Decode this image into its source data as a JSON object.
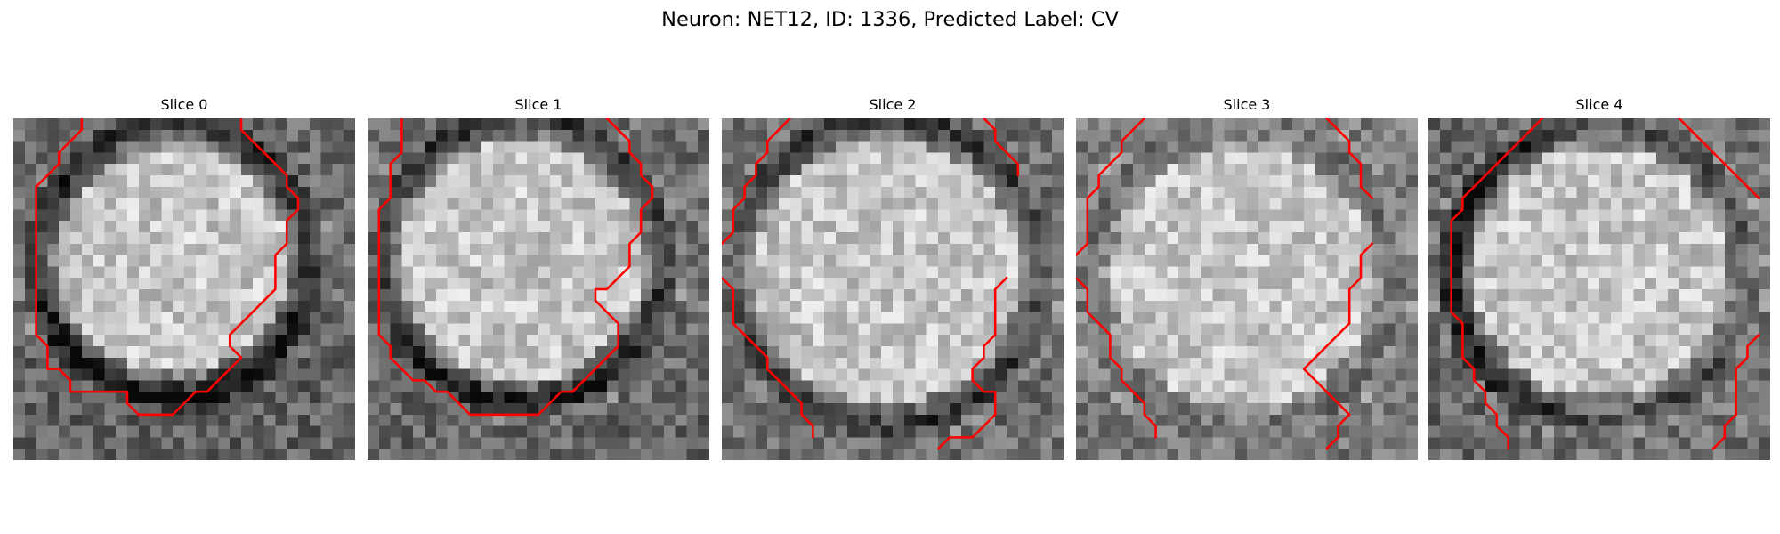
{
  "figure": {
    "title": "Neuron: NET12, ID: 1336, Predicted Label: CV",
    "contour_color": "#ff0000"
  },
  "panels": [
    {
      "title": "Slice 0",
      "ring_dark_side": "bottom-right",
      "contours": [
        [
          [
            20,
            0
          ],
          [
            20,
            1
          ],
          [
            21,
            2
          ],
          [
            22,
            3
          ],
          [
            23,
            4
          ],
          [
            24,
            5
          ],
          [
            24,
            6
          ],
          [
            25,
            7
          ],
          [
            25,
            8
          ],
          [
            24,
            9
          ],
          [
            24,
            10
          ],
          [
            24,
            11
          ],
          [
            23,
            12
          ],
          [
            23,
            13
          ],
          [
            23,
            14
          ],
          [
            23,
            15
          ],
          [
            22,
            16
          ],
          [
            21,
            17
          ],
          [
            20,
            18
          ],
          [
            19,
            19
          ],
          [
            19,
            20
          ],
          [
            20,
            21
          ],
          [
            19,
            22
          ],
          [
            18,
            23
          ],
          [
            17,
            24
          ],
          [
            16,
            24
          ],
          [
            15,
            25
          ],
          [
            14,
            26
          ],
          [
            13,
            26
          ],
          [
            12,
            26
          ],
          [
            11,
            26
          ],
          [
            10,
            25
          ],
          [
            10,
            24
          ],
          [
            9,
            24
          ],
          [
            8,
            24
          ],
          [
            7,
            24
          ],
          [
            6,
            24
          ],
          [
            5,
            24
          ],
          [
            5,
            23
          ],
          [
            4,
            22
          ],
          [
            3,
            22
          ],
          [
            3,
            21
          ],
          [
            3,
            20
          ],
          [
            2,
            19
          ],
          [
            2,
            18
          ],
          [
            2,
            17
          ],
          [
            2,
            16
          ],
          [
            2,
            15
          ],
          [
            2,
            14
          ],
          [
            2,
            13
          ],
          [
            2,
            12
          ],
          [
            2,
            11
          ],
          [
            2,
            10
          ],
          [
            2,
            9
          ],
          [
            2,
            8
          ],
          [
            2,
            7
          ],
          [
            2,
            6
          ],
          [
            3,
            5
          ],
          [
            4,
            4
          ],
          [
            4,
            3
          ],
          [
            5,
            2
          ],
          [
            6,
            1
          ],
          [
            6,
            0
          ]
        ]
      ]
    },
    {
      "title": "Slice 1",
      "ring_dark_side": "bottom",
      "contours": [
        [
          [
            21,
            0
          ],
          [
            22,
            1
          ],
          [
            23,
            2
          ],
          [
            23,
            3
          ],
          [
            24,
            4
          ],
          [
            24,
            5
          ],
          [
            25,
            6
          ],
          [
            25,
            7
          ],
          [
            24,
            8
          ],
          [
            24,
            9
          ],
          [
            24,
            10
          ],
          [
            23,
            11
          ],
          [
            23,
            12
          ],
          [
            23,
            13
          ],
          [
            22,
            14
          ],
          [
            21,
            15
          ],
          [
            20,
            15
          ],
          [
            20,
            16
          ],
          [
            21,
            17
          ],
          [
            22,
            18
          ],
          [
            22,
            19
          ],
          [
            22,
            20
          ],
          [
            21,
            21
          ],
          [
            20,
            22
          ],
          [
            19,
            23
          ],
          [
            18,
            24
          ],
          [
            17,
            24
          ],
          [
            16,
            25
          ],
          [
            15,
            26
          ],
          [
            14,
            26
          ],
          [
            13,
            26
          ],
          [
            12,
            26
          ],
          [
            11,
            26
          ],
          [
            10,
            26
          ],
          [
            9,
            26
          ],
          [
            8,
            25
          ],
          [
            7,
            24
          ],
          [
            6,
            24
          ],
          [
            5,
            23
          ],
          [
            4,
            23
          ],
          [
            3,
            22
          ],
          [
            2,
            21
          ],
          [
            2,
            20
          ],
          [
            1,
            19
          ],
          [
            1,
            18
          ],
          [
            1,
            17
          ],
          [
            1,
            16
          ],
          [
            1,
            15
          ],
          [
            1,
            14
          ],
          [
            1,
            13
          ],
          [
            1,
            12
          ],
          [
            1,
            11
          ],
          [
            1,
            10
          ],
          [
            1,
            9
          ],
          [
            1,
            8
          ],
          [
            2,
            7
          ],
          [
            2,
            6
          ],
          [
            2,
            5
          ],
          [
            2,
            4
          ],
          [
            3,
            3
          ],
          [
            3,
            2
          ],
          [
            3,
            1
          ],
          [
            3,
            0
          ]
        ]
      ]
    },
    {
      "title": "Slice 2",
      "ring_dark_side": "top and bottom",
      "contours": [
        [
          [
            23,
            0
          ],
          [
            24,
            1
          ],
          [
            24,
            2
          ],
          [
            25,
            3
          ],
          [
            26,
            4
          ],
          [
            26,
            5
          ]
        ],
        [
          [
            6,
            0
          ],
          [
            5,
            1
          ],
          [
            4,
            2
          ],
          [
            4,
            3
          ],
          [
            3,
            4
          ],
          [
            3,
            5
          ],
          [
            2,
            6
          ],
          [
            2,
            7
          ],
          [
            1,
            8
          ],
          [
            1,
            9
          ],
          [
            1,
            10
          ],
          [
            0,
            11
          ]
        ],
        [
          [
            0,
            14
          ],
          [
            1,
            15
          ],
          [
            1,
            16
          ],
          [
            1,
            17
          ],
          [
            1,
            18
          ],
          [
            2,
            19
          ],
          [
            3,
            20
          ],
          [
            4,
            21
          ],
          [
            4,
            22
          ],
          [
            5,
            23
          ],
          [
            6,
            24
          ],
          [
            7,
            25
          ],
          [
            7,
            26
          ],
          [
            8,
            27
          ],
          [
            8,
            28
          ]
        ],
        [
          [
            25,
            14
          ],
          [
            24,
            15
          ],
          [
            24,
            16
          ],
          [
            24,
            17
          ],
          [
            24,
            18
          ],
          [
            24,
            19
          ],
          [
            23,
            20
          ],
          [
            23,
            21
          ],
          [
            22,
            22
          ],
          [
            22,
            23
          ],
          [
            23,
            24
          ],
          [
            24,
            24
          ],
          [
            24,
            25
          ],
          [
            24,
            26
          ],
          [
            23,
            27
          ],
          [
            22,
            28
          ],
          [
            21,
            28
          ],
          [
            20,
            28
          ],
          [
            19,
            29
          ]
        ]
      ]
    },
    {
      "title": "Slice 3",
      "ring_dark_side": "none",
      "contours": [
        [
          [
            6,
            0
          ],
          [
            5,
            1
          ],
          [
            4,
            2
          ],
          [
            4,
            3
          ],
          [
            3,
            4
          ],
          [
            2,
            5
          ],
          [
            2,
            6
          ],
          [
            1,
            7
          ],
          [
            1,
            8
          ],
          [
            1,
            9
          ],
          [
            1,
            10
          ],
          [
            1,
            11
          ],
          [
            0,
            12
          ]
        ],
        [
          [
            22,
            0
          ],
          [
            23,
            1
          ],
          [
            24,
            2
          ],
          [
            24,
            3
          ],
          [
            25,
            4
          ],
          [
            25,
            5
          ],
          [
            25,
            6
          ],
          [
            26,
            7
          ]
        ],
        [
          [
            0,
            14
          ],
          [
            1,
            15
          ],
          [
            1,
            16
          ],
          [
            1,
            17
          ],
          [
            2,
            18
          ],
          [
            3,
            19
          ],
          [
            3,
            20
          ],
          [
            3,
            21
          ],
          [
            4,
            22
          ],
          [
            4,
            23
          ],
          [
            5,
            24
          ],
          [
            6,
            25
          ],
          [
            6,
            26
          ],
          [
            7,
            27
          ],
          [
            7,
            28
          ]
        ],
        [
          [
            26,
            11
          ],
          [
            25,
            12
          ],
          [
            25,
            13
          ],
          [
            25,
            14
          ],
          [
            24,
            15
          ],
          [
            24,
            16
          ],
          [
            24,
            17
          ],
          [
            24,
            18
          ],
          [
            23,
            19
          ],
          [
            22,
            20
          ],
          [
            21,
            21
          ],
          [
            20,
            22
          ],
          [
            21,
            23
          ],
          [
            22,
            24
          ],
          [
            23,
            25
          ],
          [
            24,
            26
          ],
          [
            23,
            27
          ],
          [
            23,
            28
          ],
          [
            22,
            29
          ]
        ]
      ]
    },
    {
      "title": "Slice 4",
      "ring_dark_side": "left",
      "contours": [
        [
          [
            10,
            0
          ],
          [
            9,
            1
          ],
          [
            8,
            2
          ],
          [
            7,
            3
          ],
          [
            6,
            4
          ],
          [
            5,
            5
          ],
          [
            4,
            6
          ],
          [
            3,
            7
          ],
          [
            3,
            8
          ],
          [
            2,
            9
          ],
          [
            2,
            10
          ],
          [
            2,
            11
          ],
          [
            2,
            12
          ],
          [
            2,
            13
          ],
          [
            2,
            14
          ],
          [
            2,
            15
          ],
          [
            2,
            16
          ],
          [
            2,
            17
          ],
          [
            3,
            18
          ],
          [
            3,
            19
          ],
          [
            3,
            20
          ],
          [
            3,
            21
          ],
          [
            4,
            22
          ],
          [
            4,
            23
          ],
          [
            5,
            24
          ],
          [
            5,
            25
          ],
          [
            6,
            26
          ],
          [
            6,
            27
          ],
          [
            7,
            28
          ],
          [
            7,
            29
          ]
        ],
        [
          [
            22,
            0
          ],
          [
            23,
            1
          ],
          [
            24,
            2
          ],
          [
            25,
            3
          ],
          [
            26,
            4
          ],
          [
            27,
            5
          ],
          [
            28,
            6
          ],
          [
            29,
            7
          ]
        ],
        [
          [
            29,
            19
          ],
          [
            28,
            20
          ],
          [
            28,
            21
          ],
          [
            27,
            22
          ],
          [
            27,
            23
          ],
          [
            27,
            24
          ],
          [
            27,
            25
          ],
          [
            27,
            26
          ],
          [
            26,
            27
          ],
          [
            26,
            28
          ],
          [
            25,
            29
          ]
        ]
      ]
    }
  ]
}
